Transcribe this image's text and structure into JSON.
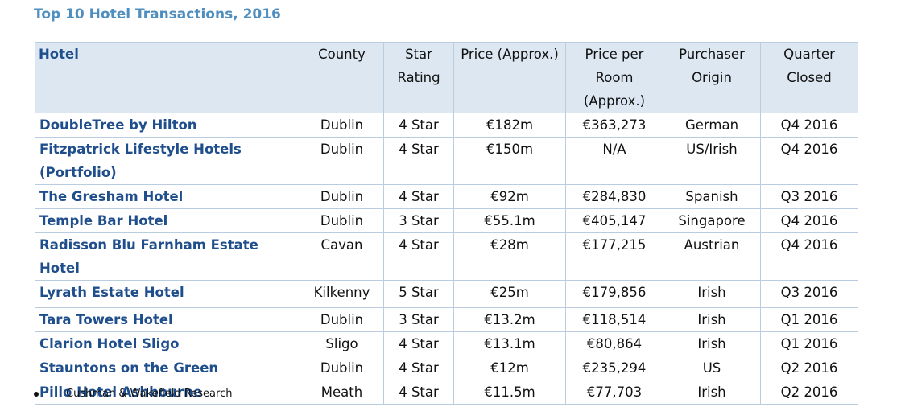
{
  "header": {
    "title": "Top 10 Hotel Transactions, 2016"
  },
  "table": {
    "columns": [
      "Hotel",
      "County",
      "Star Rating",
      "Price (Approx.)",
      "Price per Room (Approx.)",
      "Purchaser Origin",
      "Quarter Closed"
    ],
    "rows": [
      [
        "DoubleTree by Hilton",
        "Dublin",
        "4 Star",
        "€182m",
        "€363,273",
        "German",
        "Q4 2016"
      ],
      [
        "Fitzpatrick Lifestyle Hotels (Portfolio)",
        "Dublin",
        "4 Star",
        "€150m",
        "N/A",
        "US/Irish",
        "Q4 2016"
      ],
      [
        "The Gresham Hotel",
        "Dublin",
        "4 Star",
        "€92m",
        "€284,830",
        "Spanish",
        "Q3 2016"
      ],
      [
        "Temple Bar Hotel",
        "Dublin",
        "3 Star",
        "€55.1m",
        "€405,147",
        "Singapore",
        "Q4 2016"
      ],
      [
        "Radisson Blu Farnham Estate Hotel",
        "Cavan",
        "4 Star",
        "€28m",
        "€177,215",
        "Austrian",
        "Q4 2016"
      ],
      [
        "Lyrath Estate Hotel",
        "Kilkenny",
        "5 Star",
        "€25m",
        "€179,856",
        "Irish",
        "Q3 2016"
      ],
      [
        "Tara Towers Hotel",
        "Dublin",
        "3 Star",
        "€13.2m",
        "€118,514",
        "Irish",
        "Q1 2016"
      ],
      [
        "Clarion Hotel Sligo",
        "Sligo",
        "4 Star",
        "€13.1m",
        "€80,864",
        "Irish",
        "Q1 2016"
      ],
      [
        "Stauntons on the Green",
        "Dublin",
        "4 Star",
        "€12m",
        "€235,294",
        "US",
        "Q2 2016"
      ],
      [
        "Pillo Hotel Ashbourne",
        "Meath",
        "4 Star",
        "€11.5m",
        "€77,703",
        "Irish",
        "Q2 2016"
      ]
    ]
  },
  "footnote": "Cushman & Wakefield Research"
}
